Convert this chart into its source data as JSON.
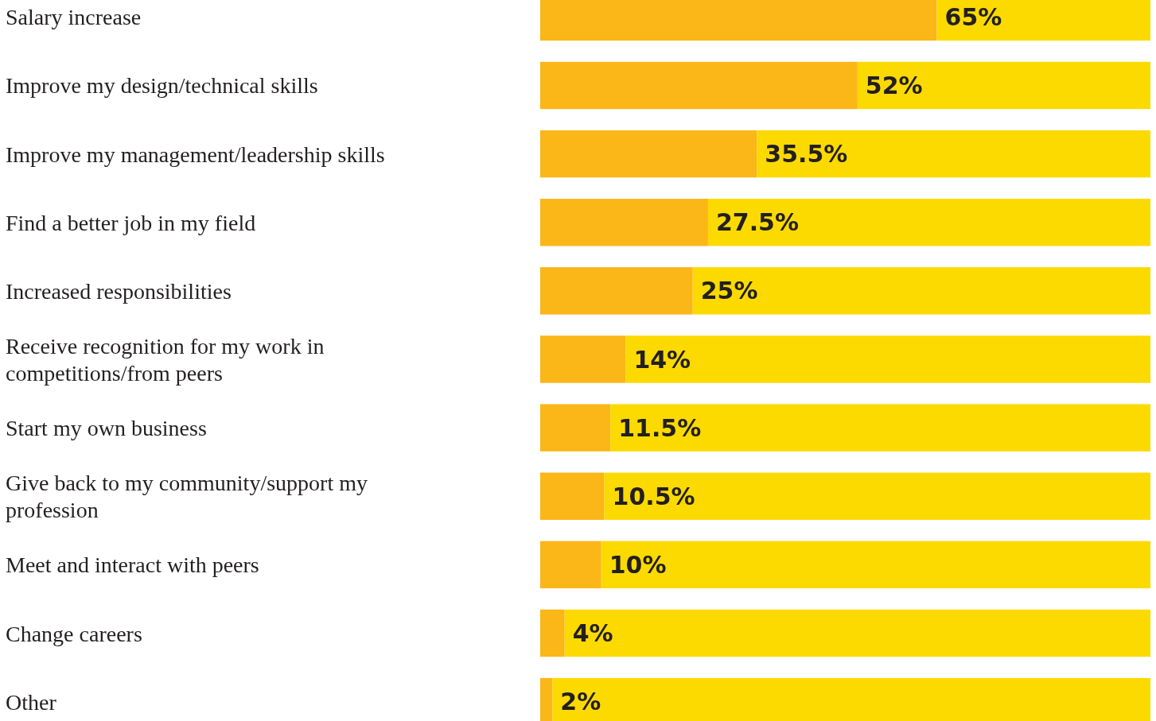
{
  "chart_data": {
    "type": "bar",
    "orientation": "horizontal",
    "categories": [
      "Salary increase",
      "Improve my design/technical skills",
      "Improve my management/leadership skills",
      "Find a better job in my field",
      "Increased responsibilities",
      "Receive recognition for my work in competitions/from peers",
      "Start my own business",
      "Give back to my community/support my profession",
      "Meet and interact with peers",
      "Change careers",
      "Other"
    ],
    "series": [
      {
        "color": "#fbb617",
        "values": [
          65,
          52,
          35.5,
          27.5,
          25,
          14,
          11.5,
          10.5,
          10,
          4,
          2
        ],
        "value_labels": [
          "65%",
          "52%",
          "35.5%",
          "27.5%",
          "25%",
          "14%",
          "11.5%",
          "10.5%",
          "10%",
          "4%",
          "2%"
        ]
      },
      {
        "color": "#fcda00",
        "values": [
          35,
          48,
          64.5,
          72.5,
          75,
          86,
          88.5,
          89.5,
          90,
          96,
          98
        ]
      }
    ],
    "stacked": true,
    "xlim": [
      0,
      100
    ],
    "tick_labels": "y"
  }
}
